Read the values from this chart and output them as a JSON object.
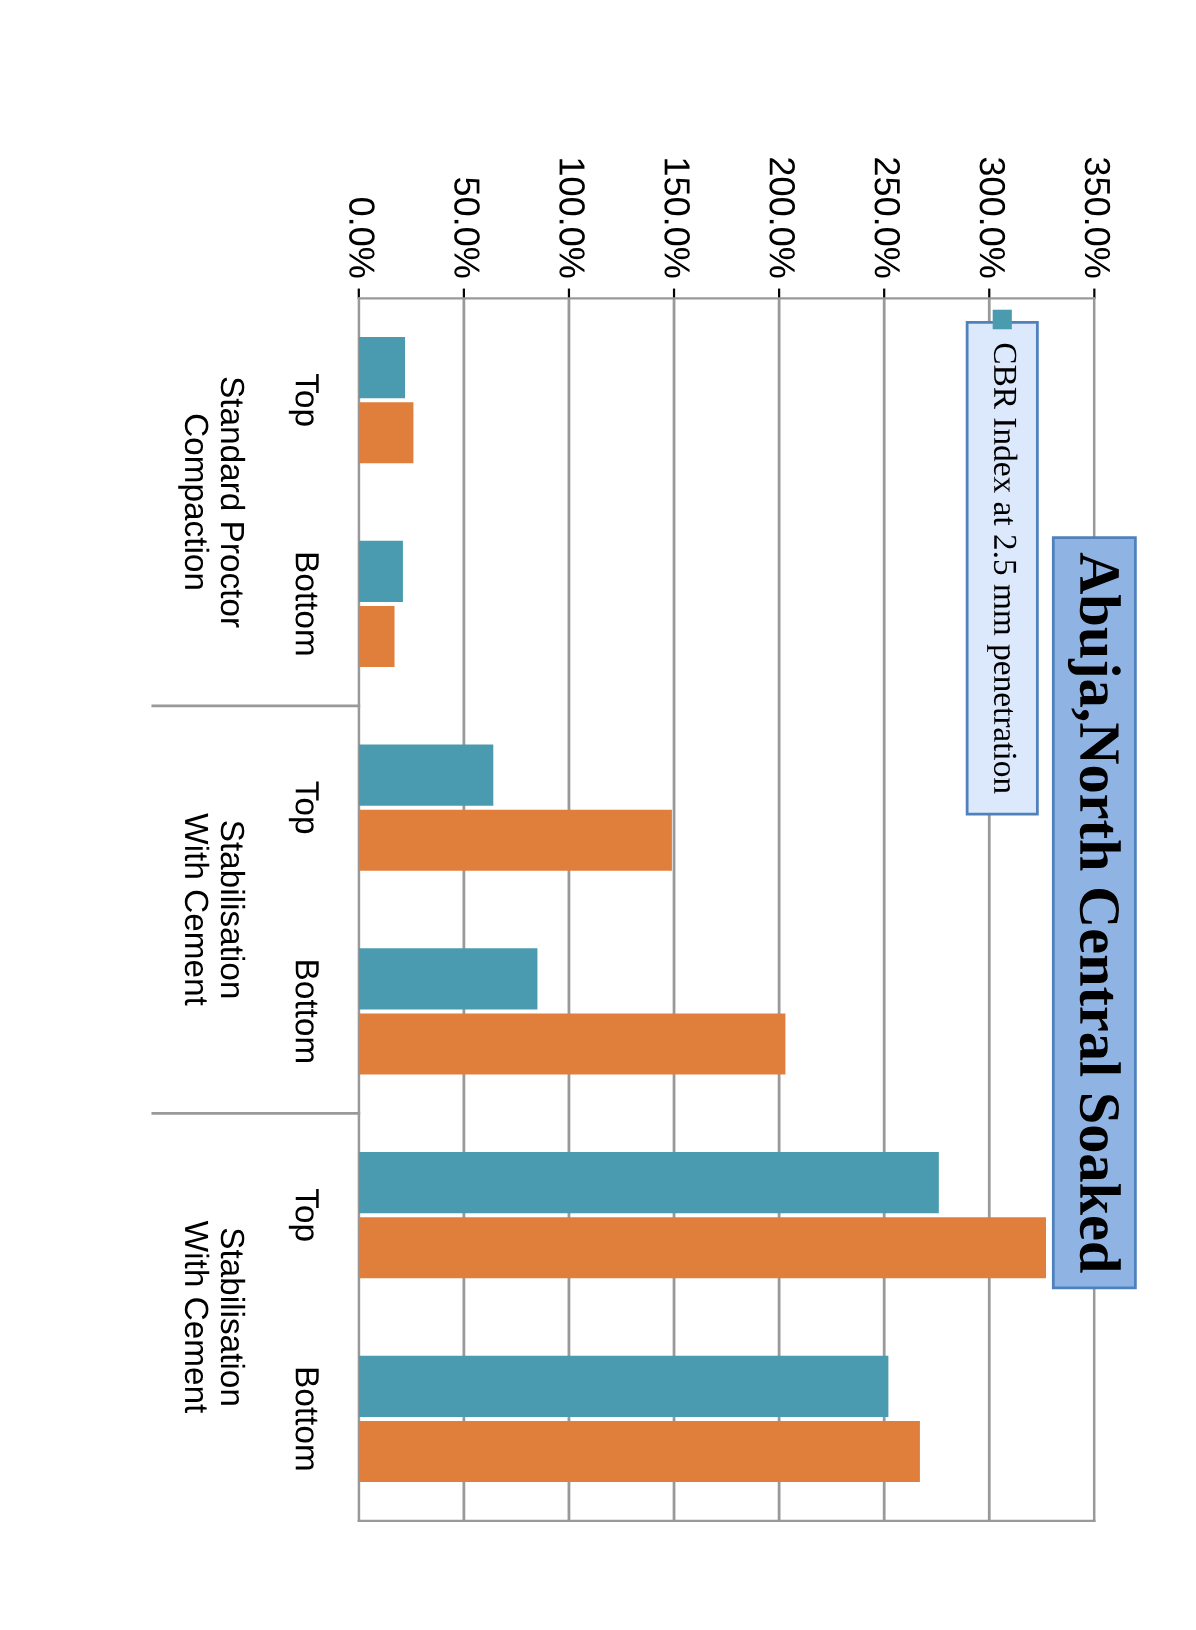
{
  "chart_data": {
    "type": "bar",
    "orientation": "horizontal",
    "title": "Abuja,North Central Soaked",
    "categories": [
      "Top",
      "Bottom",
      "Top",
      "Bottom",
      "Top",
      "Bottom"
    ],
    "annotations": [
      "Standard Proctor Compaction",
      "Stabilisation With Cement",
      "Stabilisation With Cement"
    ],
    "series": [
      {
        "name": "CBR Index at 2.5 mm penetration",
        "color": "#4a9bb0",
        "values": [
          22,
          21,
          64,
          85,
          276,
          252
        ]
      },
      {
        "color": "#e07f3c",
        "values": [
          26,
          17,
          149,
          203,
          327,
          267
        ]
      }
    ],
    "xlim": [
      0,
      350
    ],
    "xticks": [
      {
        "value": 0,
        "label": "0.0%"
      },
      {
        "value": 50,
        "label": "50.0%"
      },
      {
        "value": 100,
        "label": "100.0%"
      },
      {
        "value": 150,
        "label": "150.0%"
      },
      {
        "value": 200,
        "label": "200.0%"
      },
      {
        "value": 250,
        "label": "250.0%"
      },
      {
        "value": 300,
        "label": "300.0%"
      },
      {
        "value": 350,
        "label": "350.0%"
      }
    ],
    "grid": "x",
    "legend": "top right"
  }
}
